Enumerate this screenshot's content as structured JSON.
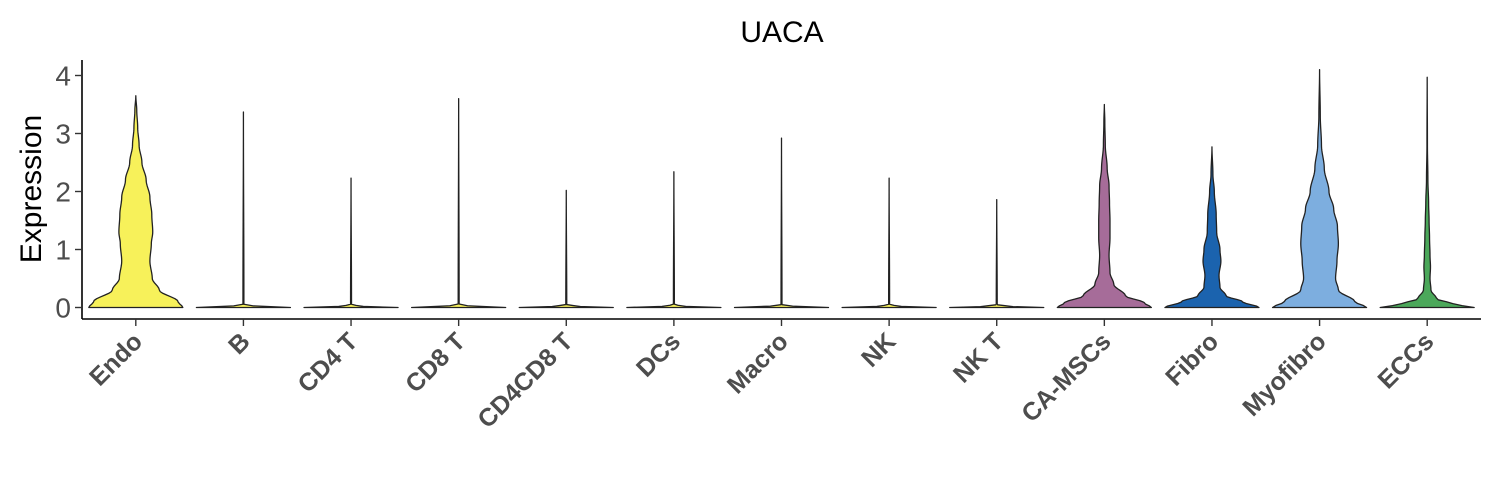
{
  "chart_data": {
    "type": "violin",
    "title": "UACA",
    "xlabel": "",
    "ylabel": "Expression",
    "ylim": [
      -0.18,
      4.18
    ],
    "yticks": [
      0,
      1,
      2,
      3,
      4
    ],
    "grid": false,
    "legend": "none",
    "categories": [
      "Endo",
      "B",
      "CD4 T",
      "CD8 T",
      "CD4CD8 T",
      "DCs",
      "Macro",
      "NK",
      "NK T",
      "CA-MSCs",
      "Fibro",
      "Myofibro",
      "ECCs"
    ],
    "series": [
      {
        "category": "Endo",
        "color": "#F7F15A",
        "max": 3.65,
        "profile": [
          [
            0,
            1.0
          ],
          [
            0.1,
            0.9
          ],
          [
            0.3,
            0.5
          ],
          [
            0.5,
            0.35
          ],
          [
            0.8,
            0.3
          ],
          [
            1.1,
            0.33
          ],
          [
            1.3,
            0.36
          ],
          [
            1.6,
            0.34
          ],
          [
            1.9,
            0.3
          ],
          [
            2.2,
            0.22
          ],
          [
            2.5,
            0.13
          ],
          [
            2.8,
            0.07
          ],
          [
            3.1,
            0.04
          ],
          [
            3.4,
            0.02
          ],
          [
            3.65,
            0
          ]
        ]
      },
      {
        "category": "B",
        "color": "#F7F15A",
        "max": 3.37,
        "profile": [
          [
            0,
            1.0
          ],
          [
            0.02,
            0.25
          ],
          [
            0.05,
            0.01
          ],
          [
            3.37,
            0
          ]
        ]
      },
      {
        "category": "CD4 T",
        "color": "#F7F15A",
        "max": 2.23,
        "profile": [
          [
            0,
            1.0
          ],
          [
            0.02,
            0.25
          ],
          [
            0.05,
            0.01
          ],
          [
            2.23,
            0
          ]
        ]
      },
      {
        "category": "CD8 T",
        "color": "#F7F15A",
        "max": 3.6,
        "profile": [
          [
            0,
            1.0
          ],
          [
            0.02,
            0.25
          ],
          [
            0.05,
            0.01
          ],
          [
            3.6,
            0
          ]
        ]
      },
      {
        "category": "CD4CD8 T",
        "color": "#F7F15A",
        "max": 2.02,
        "profile": [
          [
            0,
            1.0
          ],
          [
            0.02,
            0.25
          ],
          [
            0.05,
            0.01
          ],
          [
            2.02,
            0
          ]
        ]
      },
      {
        "category": "DCs",
        "color": "#F7F15A",
        "max": 2.34,
        "profile": [
          [
            0,
            1.0
          ],
          [
            0.02,
            0.25
          ],
          [
            0.05,
            0.01
          ],
          [
            2.34,
            0
          ]
        ]
      },
      {
        "category": "Macro",
        "color": "#F7F15A",
        "max": 2.92,
        "profile": [
          [
            0,
            1.0
          ],
          [
            0.02,
            0.25
          ],
          [
            0.05,
            0.01
          ],
          [
            2.92,
            0
          ]
        ]
      },
      {
        "category": "NK",
        "color": "#F7F15A",
        "max": 2.23,
        "profile": [
          [
            0,
            1.0
          ],
          [
            0.02,
            0.25
          ],
          [
            0.05,
            0.01
          ],
          [
            2.23,
            0
          ]
        ]
      },
      {
        "category": "NK T",
        "color": "#F7F15A",
        "max": 1.86,
        "profile": [
          [
            0,
            1.0
          ],
          [
            0.02,
            0.25
          ],
          [
            0.05,
            0.01
          ],
          [
            1.86,
            0
          ]
        ]
      },
      {
        "category": "CA-MSCs",
        "color": "#A66C99",
        "max": 3.5,
        "profile": [
          [
            0,
            1.0
          ],
          [
            0.08,
            0.85
          ],
          [
            0.2,
            0.45
          ],
          [
            0.4,
            0.2
          ],
          [
            0.6,
            0.12
          ],
          [
            0.9,
            0.1
          ],
          [
            1.2,
            0.12
          ],
          [
            1.5,
            0.12
          ],
          [
            1.8,
            0.11
          ],
          [
            2.1,
            0.1
          ],
          [
            2.4,
            0.06
          ],
          [
            2.8,
            0.02
          ],
          [
            3.2,
            0.01
          ],
          [
            3.5,
            0
          ]
        ]
      },
      {
        "category": "Fibro",
        "color": "#1B63AE",
        "max": 2.77,
        "profile": [
          [
            0,
            1.0
          ],
          [
            0.1,
            0.65
          ],
          [
            0.2,
            0.3
          ],
          [
            0.35,
            0.17
          ],
          [
            0.55,
            0.15
          ],
          [
            0.8,
            0.19
          ],
          [
            1.0,
            0.17
          ],
          [
            1.3,
            0.1
          ],
          [
            1.6,
            0.09
          ],
          [
            2.0,
            0.05
          ],
          [
            2.3,
            0.02
          ],
          [
            2.77,
            0
          ]
        ]
      },
      {
        "category": "Myofibro",
        "color": "#7DAEDF",
        "max": 4.1,
        "profile": [
          [
            0,
            1.0
          ],
          [
            0.1,
            0.75
          ],
          [
            0.3,
            0.4
          ],
          [
            0.5,
            0.34
          ],
          [
            0.8,
            0.37
          ],
          [
            1.1,
            0.4
          ],
          [
            1.4,
            0.38
          ],
          [
            1.7,
            0.3
          ],
          [
            2.0,
            0.2
          ],
          [
            2.4,
            0.1
          ],
          [
            2.8,
            0.04
          ],
          [
            3.3,
            0.015
          ],
          [
            4.1,
            0
          ]
        ]
      },
      {
        "category": "ECCs",
        "color": "#4BA85A",
        "max": 3.97,
        "profile": [
          [
            0,
            1.0
          ],
          [
            0.06,
            0.55
          ],
          [
            0.15,
            0.2
          ],
          [
            0.3,
            0.08
          ],
          [
            0.5,
            0.06
          ],
          [
            0.7,
            0.07
          ],
          [
            0.9,
            0.06
          ],
          [
            1.2,
            0.05
          ],
          [
            1.5,
            0.04
          ],
          [
            1.8,
            0.03
          ],
          [
            2.2,
            0.015
          ],
          [
            2.8,
            0.005
          ],
          [
            3.97,
            0
          ]
        ]
      }
    ]
  }
}
